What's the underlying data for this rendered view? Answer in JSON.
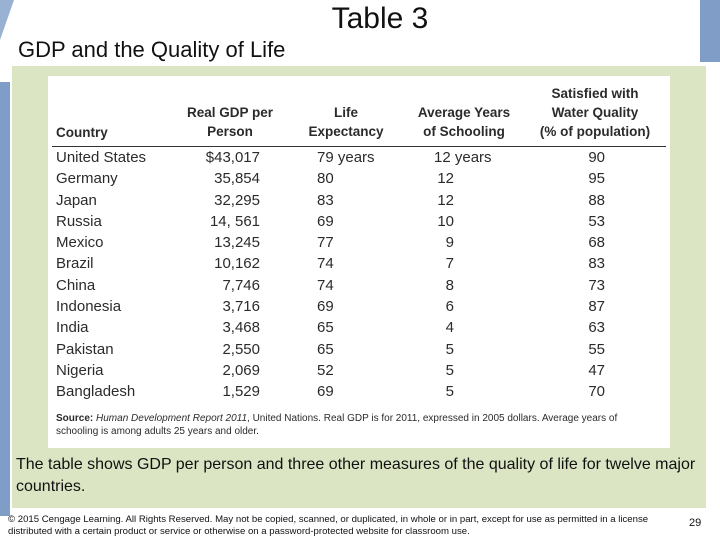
{
  "slide": {
    "title": "Table 3",
    "subtitle": "GDP and the Quality of Life",
    "caption": "The table shows GDP per person and three other measures of the quality of life for twelve major countries.",
    "copyright": "© 2015 Cengage Learning. All Rights Reserved. May not be copied, scanned, or duplicated, in whole or in part, except for use as permitted in a license distributed with a certain product or service or otherwise on a password-protected website for classroom use.",
    "page_number": "29"
  },
  "table": {
    "headers": {
      "country": "Country",
      "gdp_line1": "Real GDP per",
      "gdp_line2": "Person",
      "life_line1": "Life",
      "life_line2": "Expectancy",
      "school_line1": "Average Years",
      "school_line2": "of Schooling",
      "water_line1": "Satisfied with",
      "water_line2": "Water Quality",
      "water_line3": "(% of population)"
    },
    "rows": [
      {
        "country": "United States",
        "gdp": "$43,017",
        "life": "79 years",
        "school": "12 years",
        "water": "90"
      },
      {
        "country": "Germany",
        "gdp": "35,854",
        "life": "80",
        "school": "12",
        "water": "95"
      },
      {
        "country": "Japan",
        "gdp": "32,295",
        "life": "83",
        "school": "12",
        "water": "88"
      },
      {
        "country": "Russia",
        "gdp": "14, 561",
        "life": "69",
        "school": "10",
        "water": "53"
      },
      {
        "country": "Mexico",
        "gdp": "13,245",
        "life": "77",
        "school": "9",
        "water": "68"
      },
      {
        "country": "Brazil",
        "gdp": "10,162",
        "life": "74",
        "school": "7",
        "water": "83"
      },
      {
        "country": "China",
        "gdp": "7,746",
        "life": "74",
        "school": "8",
        "water": "73"
      },
      {
        "country": "Indonesia",
        "gdp": "3,716",
        "life": "69",
        "school": "6",
        "water": "87"
      },
      {
        "country": "India",
        "gdp": "3,468",
        "life": "65",
        "school": "4",
        "water": "63"
      },
      {
        "country": "Pakistan",
        "gdp": "2,550",
        "life": "65",
        "school": "5",
        "water": "55"
      },
      {
        "country": "Nigeria",
        "gdp": "2,069",
        "life": "52",
        "school": "5",
        "water": "47"
      },
      {
        "country": "Bangladesh",
        "gdp": "1,529",
        "life": "69",
        "school": "5",
        "water": "70"
      }
    ],
    "source_label": "Source:",
    "source_title": "Human Development Report 2011",
    "source_text": ", United Nations. Real GDP is for 2011, expressed in 2005 dollars. Average years of schooling is among adults 25 years and older."
  },
  "colors": {
    "panel": "#dbe5c3",
    "accent_bar": "#7f9dc7"
  }
}
